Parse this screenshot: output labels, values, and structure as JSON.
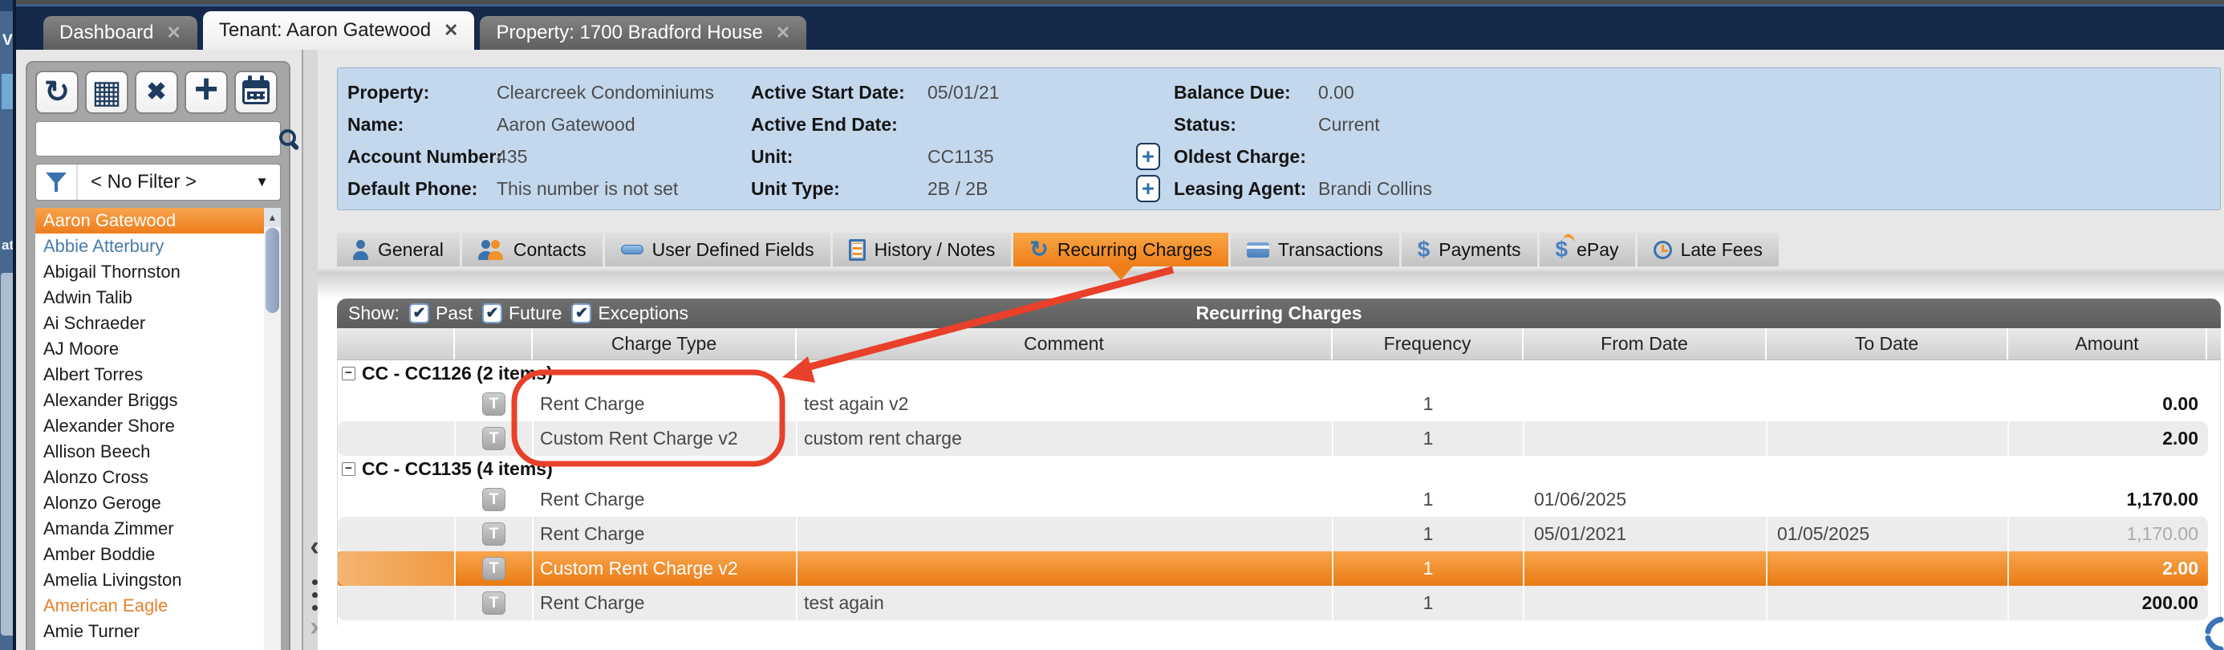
{
  "window_tabs": [
    {
      "label": "Dashboard",
      "active": false
    },
    {
      "label": "Tenant: Aaron Gatewood",
      "active": true
    },
    {
      "label": "Property: 1700 Bradford House",
      "active": false
    }
  ],
  "close_glyph": "✕",
  "edge_fragments": {
    "top": "Vi",
    "mid": "at"
  },
  "sidebar": {
    "toolbar_icons": [
      "refresh-icon",
      "grid-icon",
      "delete-icon",
      "add-icon",
      "calendar-icon"
    ],
    "search": {
      "value": "",
      "placeholder": ""
    },
    "filter_value": "< No Filter >",
    "tenants": [
      {
        "name": "Aaron Gatewood",
        "state": "selected"
      },
      {
        "name": "Abbie Atterbury",
        "state": "link"
      },
      {
        "name": "Abigail Thornston",
        "state": "normal"
      },
      {
        "name": "Adwin Talib",
        "state": "normal"
      },
      {
        "name": "Ai Schraeder",
        "state": "normal"
      },
      {
        "name": "AJ Moore",
        "state": "normal"
      },
      {
        "name": "Albert Torres",
        "state": "normal"
      },
      {
        "name": "Alexander Briggs",
        "state": "normal"
      },
      {
        "name": "Alexander Shore",
        "state": "normal"
      },
      {
        "name": "Allison Beech",
        "state": "normal"
      },
      {
        "name": "Alonzo Cross",
        "state": "normal"
      },
      {
        "name": "Alonzo Geroge",
        "state": "normal"
      },
      {
        "name": "Amanda Zimmer",
        "state": "normal"
      },
      {
        "name": "Amber Boddie",
        "state": "normal"
      },
      {
        "name": "Amelia Livingston",
        "state": "normal"
      },
      {
        "name": "American Eagle",
        "state": "vendor"
      },
      {
        "name": "Amie Turner",
        "state": "normal"
      }
    ]
  },
  "info_panel": {
    "col1": [
      {
        "label": "Property:",
        "value": "Clearcreek Condominiums"
      },
      {
        "label": "Name:",
        "value": "Aaron Gatewood"
      },
      {
        "label": "Account Number:",
        "value": "435"
      },
      {
        "label": "Default Phone:",
        "value": "This number is not set"
      }
    ],
    "col2": [
      {
        "label": "Active Start Date:",
        "value": "05/01/21"
      },
      {
        "label": "Active End Date:",
        "value": ""
      },
      {
        "label": "Unit:",
        "value": "CC1135"
      },
      {
        "label": "Unit Type:",
        "value": "2B / 2B"
      }
    ],
    "col3": [
      {
        "label": "Balance Due:",
        "value": "0.00"
      },
      {
        "label": "Status:",
        "value": "Current"
      },
      {
        "label": "Oldest Charge:",
        "value": "",
        "expand": true
      },
      {
        "label": "Leasing Agent:",
        "value": "Brandi Collins",
        "expand": true
      }
    ],
    "expand_glyph": "+"
  },
  "detail_tabs": [
    {
      "label": "General",
      "icon": "person-icon",
      "active": false
    },
    {
      "label": "Contacts",
      "icon": "people-icon",
      "active": false
    },
    {
      "label": "User Defined Fields",
      "icon": "field-icon",
      "active": false
    },
    {
      "label": "History / Notes",
      "icon": "notes-icon",
      "active": false
    },
    {
      "label": "Recurring Charges",
      "icon": "recurring-icon",
      "active": true
    },
    {
      "label": "Transactions",
      "icon": "card-icon",
      "active": false
    },
    {
      "label": "Payments",
      "icon": "dollar-icon",
      "active": false
    },
    {
      "label": "ePay",
      "icon": "epay-icon",
      "active": false
    },
    {
      "label": "Late Fees",
      "icon": "clock-icon",
      "active": false
    }
  ],
  "charges": {
    "show_label": "Show:",
    "filters": [
      {
        "label": "Past",
        "checked": true
      },
      {
        "label": "Future",
        "checked": true
      },
      {
        "label": "Exceptions",
        "checked": true
      }
    ],
    "title": "Recurring Charges",
    "columns": [
      "",
      "",
      "Charge Type",
      "Comment",
      "Frequency",
      "From Date",
      "To Date",
      "Amount",
      ""
    ],
    "row_icon": "T",
    "groups": [
      {
        "label": "CC - CC1126 (2 items)",
        "rows": [
          {
            "charge_type": "Rent Charge",
            "comment": "test again v2",
            "frequency": "1",
            "from_date": "",
            "to_date": "",
            "amount": "0.00",
            "row_style": "plain"
          },
          {
            "charge_type": "Custom Rent Charge v2",
            "comment": "custom rent charge",
            "frequency": "1",
            "from_date": "",
            "to_date": "",
            "amount": "2.00",
            "row_style": "alt"
          }
        ]
      },
      {
        "label": "CC - CC1135 (4 items)",
        "rows": [
          {
            "charge_type": "Rent Charge",
            "comment": "",
            "frequency": "1",
            "from_date": "01/06/2025",
            "to_date": "",
            "amount": "1,170.00",
            "row_style": "plain"
          },
          {
            "charge_type": "Rent Charge",
            "comment": "",
            "frequency": "1",
            "from_date": "05/01/2021",
            "to_date": "01/05/2025",
            "amount": "1,170.00",
            "row_style": "alt ended"
          },
          {
            "charge_type": "Custom Rent Charge v2",
            "comment": "",
            "frequency": "1",
            "from_date": "",
            "to_date": "",
            "amount": "2.00",
            "row_style": "selected"
          },
          {
            "charge_type": "Rent Charge",
            "comment": "test again",
            "frequency": "1",
            "from_date": "",
            "to_date": "",
            "amount": "200.00",
            "row_style": "alt"
          }
        ]
      }
    ]
  },
  "colors": {
    "accent_orange": "#ee7e18",
    "navy": "#16294a",
    "info_blue": "#c3d8ed",
    "annotation_red": "#e8402a",
    "link_blue": "#4a7dab"
  }
}
